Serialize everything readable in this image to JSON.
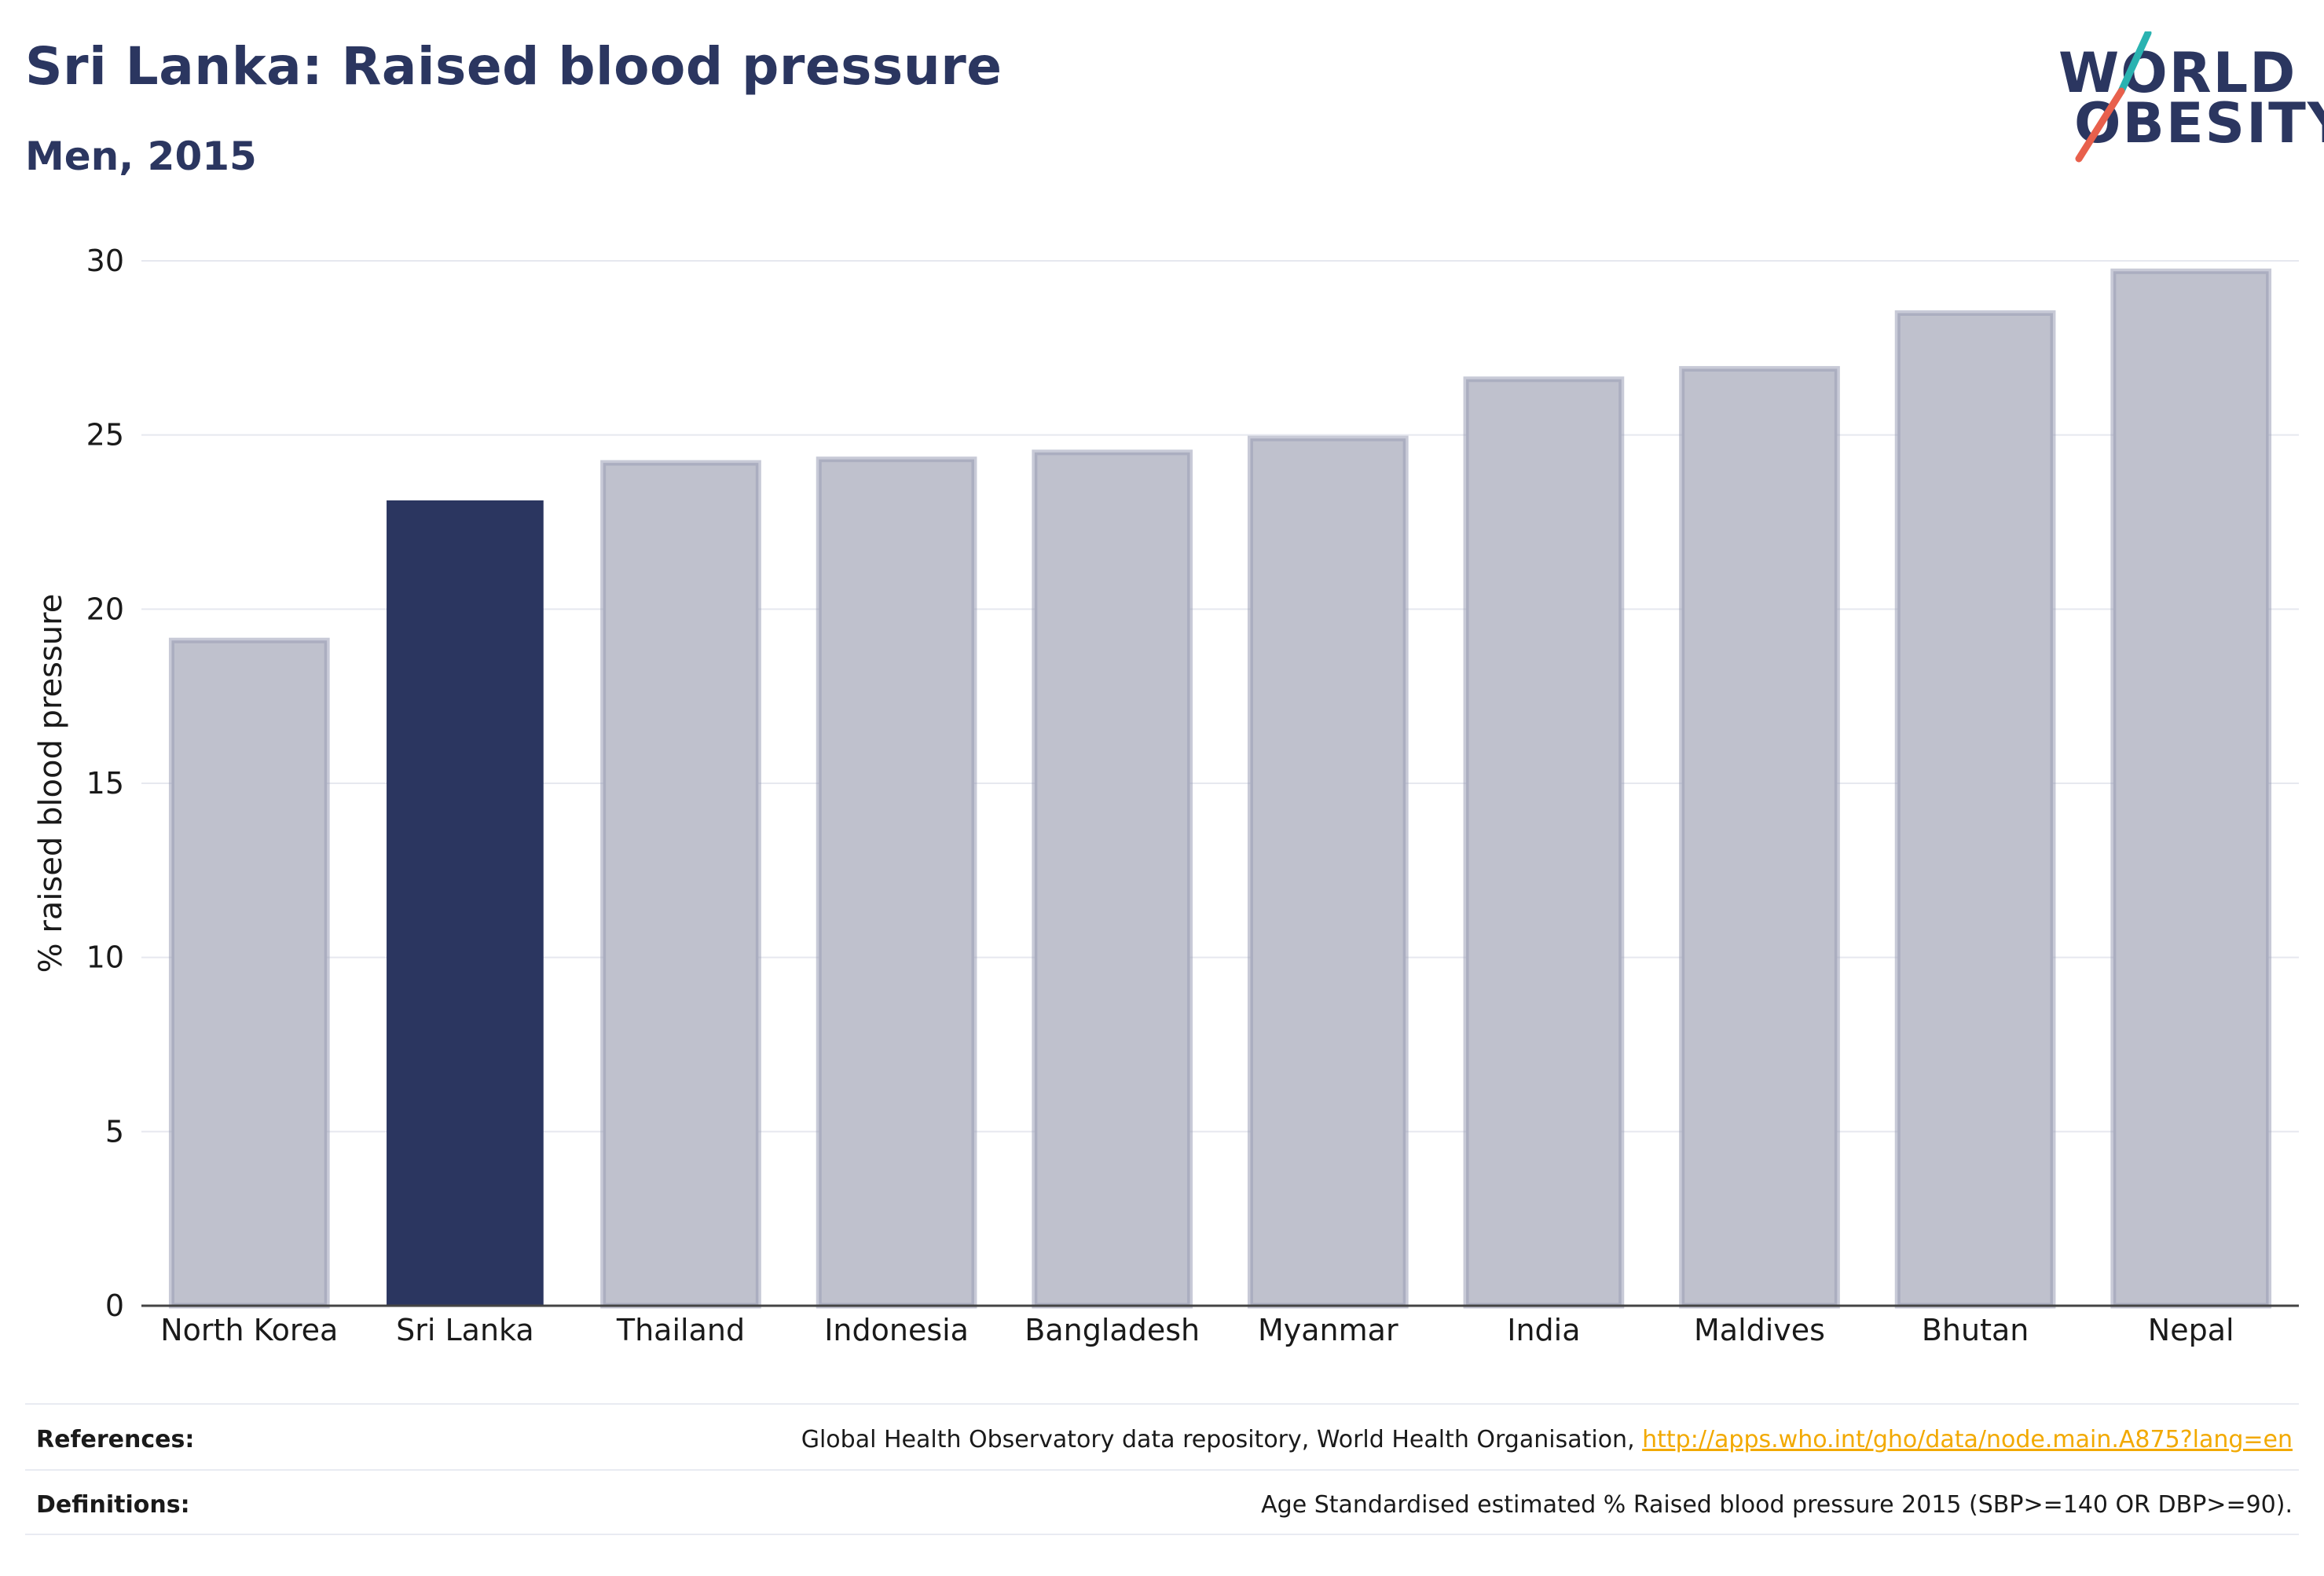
{
  "header": {
    "title": "Sri Lanka: Raised blood pressure",
    "subtitle": "Men, 2015"
  },
  "logo": {
    "line1": "WORLD",
    "line2": "OBESITY",
    "accent_colors": [
      "#2ab3b1",
      "#e8604c"
    ]
  },
  "chart_data": {
    "type": "bar",
    "title": "Sri Lanka: Raised blood pressure",
    "subtitle": "Men, 2015",
    "xlabel": "",
    "ylabel": "% raised blood pressure",
    "ylim": [
      0,
      30
    ],
    "yticks": [
      0,
      5,
      10,
      15,
      20,
      25,
      30
    ],
    "grid": true,
    "highlight": "Sri Lanka",
    "colors": {
      "highlight": "#2b3660",
      "default": "#bfc1cd",
      "default_border": "#9a9fb6"
    },
    "categories": [
      "North Korea",
      "Sri Lanka",
      "Thailand",
      "Indonesia",
      "Bangladesh",
      "Myanmar",
      "India",
      "Maldives",
      "Bhutan",
      "Nepal"
    ],
    "values": [
      19.1,
      23.1,
      24.2,
      24.3,
      24.5,
      24.9,
      26.6,
      26.9,
      28.5,
      29.7
    ]
  },
  "footer": {
    "references_label": "References:",
    "references_text": "Global Health Observatory data repository, World Health Organisation, ",
    "references_link": "http://apps.who.int/gho/data/node.main.A875?lang=en",
    "definitions_label": "Definitions:",
    "definitions_text": "Age Standardised estimated % Raised blood pressure 2015 (SBP>=140 OR DBP>=90)."
  }
}
